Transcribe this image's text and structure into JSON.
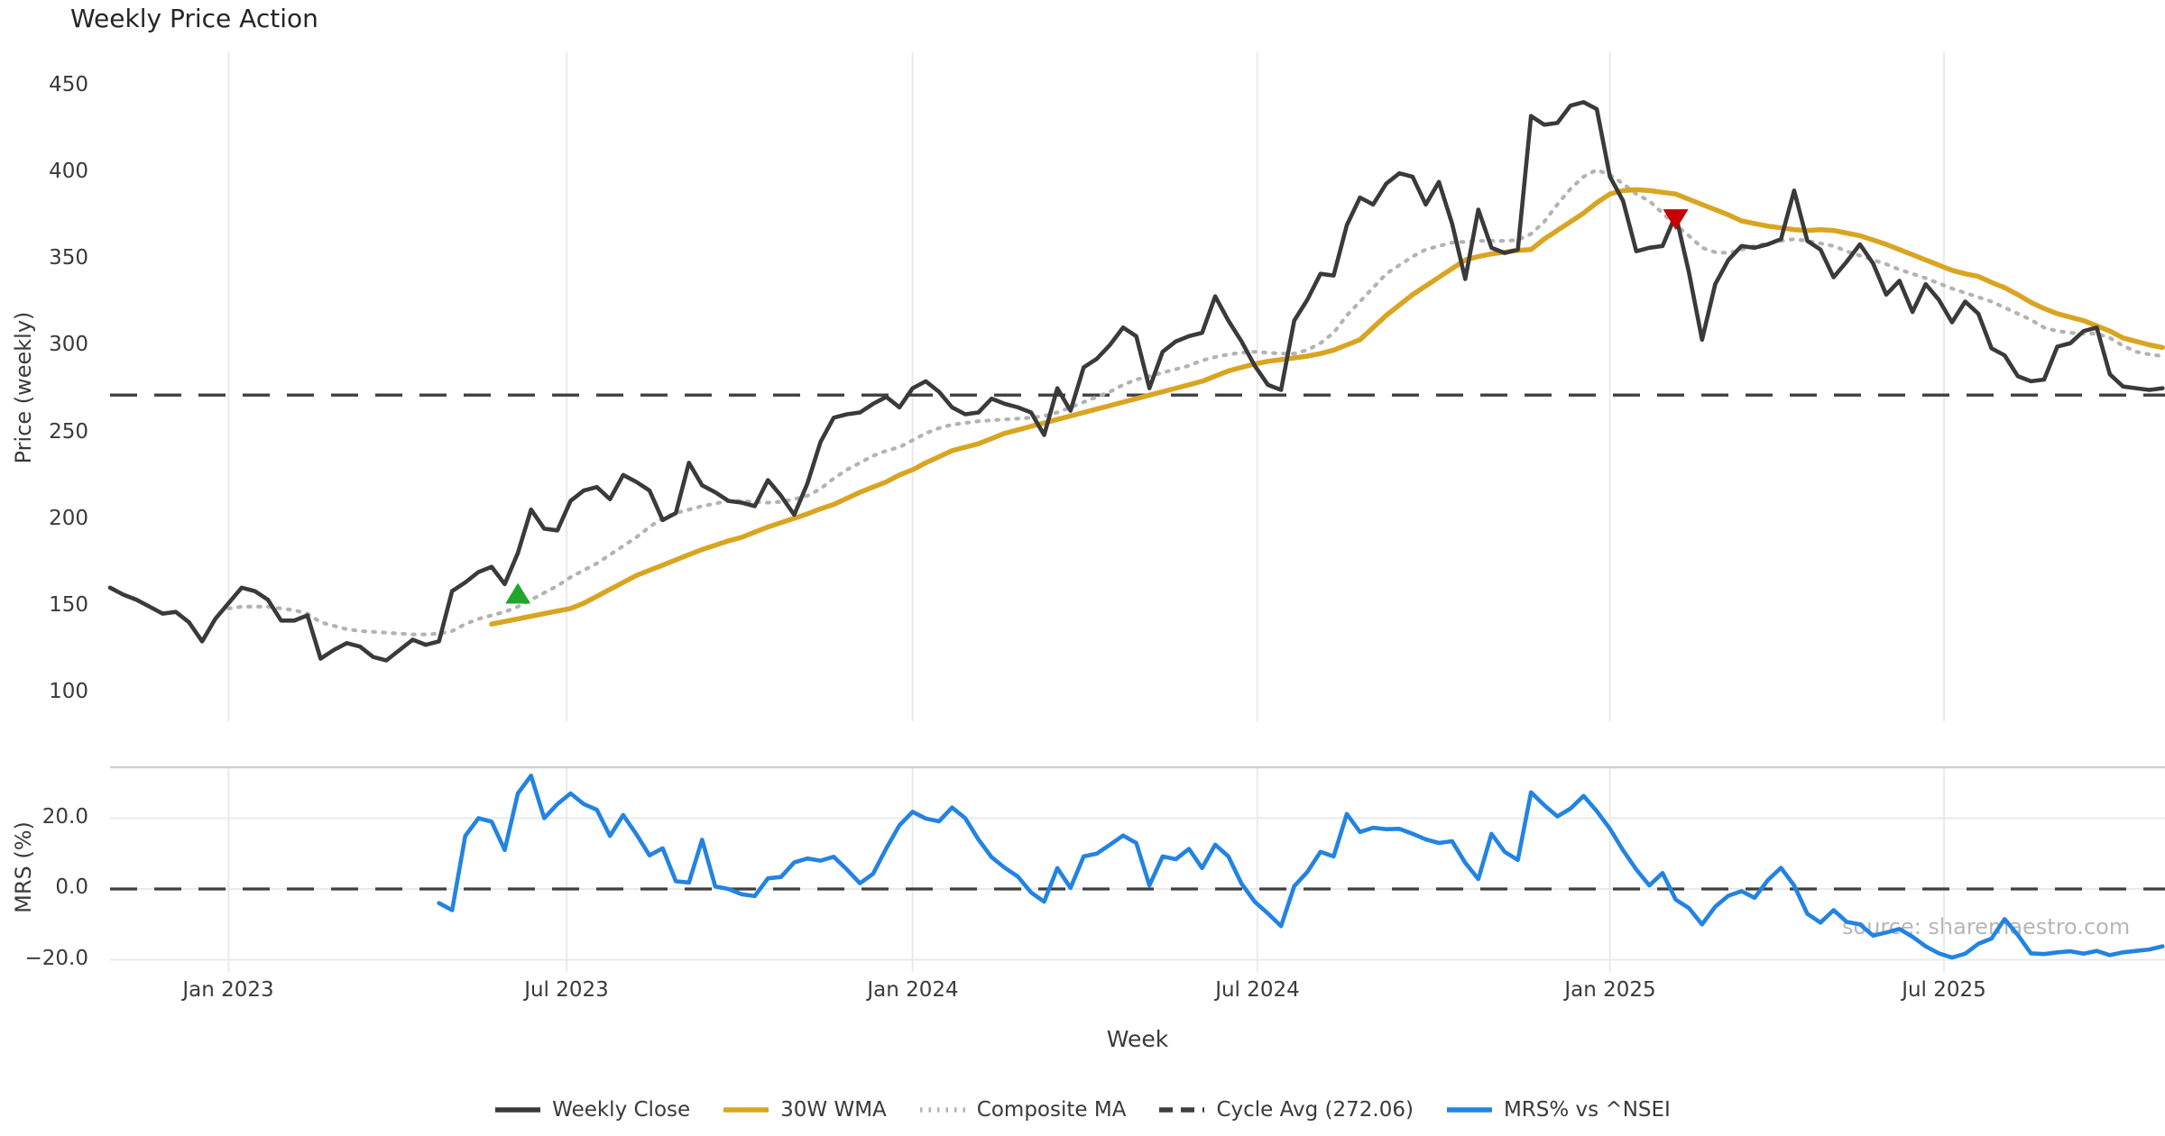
{
  "title": "Weekly Price Action",
  "watermark": "source: sharemaestro.com",
  "xlabel": "Week",
  "colors": {
    "weekly_close": "#3a3a3a",
    "wma_30w": "#d9a521",
    "composite_ma": "#b3b3b3",
    "cycle_avg": "#3f3f3f",
    "mrs": "#2383e2",
    "buy_marker": "#21a62c",
    "sell_marker": "#c40000",
    "grid": "#eaeaea",
    "panel_border": "#cfcfcf"
  },
  "legend": [
    {
      "label": "Weekly Close",
      "style": "solid",
      "color": "#3a3a3a"
    },
    {
      "label": "30W WMA",
      "style": "solid",
      "color": "#d9a521"
    },
    {
      "label": "Composite MA",
      "style": "dotted",
      "color": "#b3b3b3"
    },
    {
      "label": "Cycle Avg (272.06)",
      "style": "dashed",
      "color": "#3f3f3f"
    },
    {
      "label": "MRS% vs ^NSEI",
      "style": "solid",
      "color": "#2383e2"
    }
  ],
  "chart_data": [
    {
      "type": "line",
      "panel": "price",
      "ylabel": "Price (weekly)",
      "ylim": [
        88,
        470
      ],
      "yticks": [
        100,
        150,
        200,
        250,
        300,
        350,
        400,
        450
      ],
      "xticks": [
        {
          "label": "Jan 2023",
          "week_index": 9.0
        },
        {
          "label": "Jul 2023",
          "week_index": 34.7
        },
        {
          "label": "Jan 2024",
          "week_index": 61.0
        },
        {
          "label": "Jul 2024",
          "week_index": 87.2
        },
        {
          "label": "Jan 2025",
          "week_index": 114.0
        },
        {
          "label": "Jul 2025",
          "week_index": 139.4
        }
      ],
      "x_is_weeks_from": "late Oct 2022",
      "cycle_avg_value": 272.06,
      "series": [
        {
          "name": "Weekly Close",
          "style": "solid",
          "color": "#3a3a3a",
          "start_index": 0,
          "values": [
            161,
            157,
            154,
            150,
            146,
            147,
            141,
            130,
            143,
            152,
            161,
            159,
            154,
            142,
            142,
            145,
            120,
            125,
            129,
            127,
            121,
            119,
            125,
            131,
            128,
            130,
            159,
            164,
            170,
            173,
            163,
            181,
            206,
            195,
            194,
            211,
            217,
            219,
            212,
            226,
            222,
            217,
            200,
            204,
            233,
            220,
            216,
            211,
            210,
            208,
            223,
            214,
            203,
            221,
            245,
            259,
            261,
            262,
            267,
            271,
            265,
            276,
            280,
            274,
            265,
            261,
            262,
            270,
            267,
            265,
            262,
            249,
            276,
            263,
            288,
            293,
            301,
            311,
            306,
            276,
            297,
            303,
            306,
            308,
            329,
            315,
            303,
            289,
            278,
            275,
            315,
            327,
            342,
            341,
            370,
            386,
            382,
            394,
            400,
            398,
            382,
            395,
            371,
            339,
            379,
            357,
            354,
            356,
            433,
            428,
            429,
            439,
            441,
            437,
            398,
            384,
            355,
            357,
            358,
            376,
            343,
            304,
            336,
            350,
            358,
            357,
            359,
            362,
            390,
            361,
            356,
            340,
            349,
            359,
            348,
            330,
            338,
            320,
            336,
            327,
            314,
            326,
            319,
            299,
            295,
            283,
            280,
            281,
            300,
            302,
            309,
            311,
            284,
            277,
            276,
            275,
            276
          ]
        },
        {
          "name": "30W WMA",
          "style": "solid",
          "color": "#d9a521",
          "start_index": 29,
          "values": [
            140,
            141.5,
            143,
            144.5,
            146,
            147.5,
            149,
            152,
            156,
            160,
            164,
            168,
            171,
            174,
            177,
            180,
            183,
            185.5,
            188,
            190,
            193,
            196,
            198.5,
            201,
            203.5,
            206.5,
            209,
            212.5,
            216,
            219,
            222,
            226,
            229,
            233,
            236.5,
            240,
            242,
            244,
            247,
            250,
            252,
            254,
            256,
            258,
            260,
            262,
            264,
            266,
            268,
            270,
            272,
            274,
            276,
            278,
            280,
            283,
            286,
            288,
            290,
            291.5,
            292.5,
            293.5,
            294.5,
            296,
            298,
            301,
            304,
            311,
            318,
            324,
            330,
            335,
            340,
            345,
            350,
            352,
            353.5,
            354.5,
            355.5,
            356,
            362,
            367,
            372,
            377,
            383,
            388,
            390,
            390.5,
            390,
            389,
            388,
            385,
            382,
            379,
            376,
            372.5,
            371,
            369.5,
            368.5,
            367.5,
            367,
            367.5,
            367,
            365.5,
            364,
            361.5,
            359,
            356,
            353,
            350,
            347,
            344,
            342,
            340.5,
            337,
            334,
            330,
            325.5,
            322,
            319,
            317,
            315,
            312,
            309,
            305,
            303,
            301,
            299.5
          ]
        },
        {
          "name": "Composite MA",
          "style": "dotted",
          "color": "#b3b3b3",
          "start_index": 9,
          "values": [
            149,
            150,
            150,
            150,
            149,
            148,
            146,
            141,
            139,
            137,
            136,
            135.5,
            135,
            134.5,
            134,
            134,
            134.5,
            136,
            140,
            143,
            145,
            147,
            150,
            154,
            158,
            162,
            167,
            171,
            175,
            180,
            185,
            190,
            196,
            201,
            204,
            206,
            208,
            209.5,
            211,
            211,
            210.5,
            210,
            210.5,
            212,
            214,
            218,
            224,
            229,
            233,
            237,
            240,
            242,
            246,
            250,
            253,
            255,
            256,
            257,
            257.5,
            258,
            258.5,
            259,
            260,
            262,
            265,
            268,
            271,
            274,
            278,
            281,
            283,
            285,
            287,
            289,
            292,
            294,
            295.5,
            296.5,
            297,
            296.5,
            296,
            296,
            298,
            302,
            308,
            318,
            326,
            334,
            342,
            347,
            352,
            356,
            358,
            360,
            360.5,
            361,
            361,
            361,
            361.5,
            365,
            372,
            382,
            391,
            398,
            402,
            399,
            394,
            388,
            384,
            377,
            370,
            364,
            357,
            354.5,
            354,
            356,
            358,
            359.5,
            361,
            362,
            361,
            359.5,
            358,
            355,
            352.5,
            350,
            347.5,
            344.5,
            342,
            339.5,
            336.5,
            333.5,
            331,
            328.5,
            326,
            322.5,
            319,
            315.5,
            311,
            309,
            308,
            307.5,
            307.5,
            305,
            300.5,
            297,
            295.5,
            294.5
          ]
        }
      ],
      "markers": [
        {
          "type": "buy",
          "shape": "triangle-up",
          "color": "#21a62c",
          "week_index": 31,
          "value": 157
        },
        {
          "type": "sell",
          "shape": "triangle-down",
          "color": "#c40000",
          "week_index": 119,
          "value": 374
        }
      ]
    },
    {
      "type": "line",
      "panel": "mrs",
      "ylabel": "MRS (%)",
      "ylim": [
        -23.5,
        34.5
      ],
      "yticks": [
        {
          "label": "20.0",
          "value": 20
        },
        {
          "label": "0.0",
          "value": 0
        },
        {
          "label": "−20.0",
          "value": -20
        }
      ],
      "zero_line": 0,
      "series": [
        {
          "name": "MRS% vs ^NSEI",
          "style": "solid",
          "color": "#2383e2",
          "start_index": 25,
          "values": [
            -4,
            -6,
            15,
            20,
            19,
            11,
            27,
            32,
            20,
            24,
            27,
            24,
            22.4,
            15,
            20.9,
            15.5,
            9.5,
            11.5,
            2.2,
            1.8,
            13.9,
            0.7,
            0,
            -1.5,
            -2,
            3,
            3.4,
            7.5,
            8.6,
            8,
            9.1,
            5.5,
            1.6,
            4.3,
            11.5,
            18,
            21.8,
            19.9,
            19.1,
            23,
            20,
            14,
            9,
            6,
            3.5,
            -1,
            -3.6,
            5.9,
            0.3,
            9.2,
            10,
            12.5,
            15.1,
            13,
            1,
            9.2,
            8.4,
            11.3,
            5.9,
            12.5,
            9.2,
            1.5,
            -3.6,
            -6.9,
            -10.5,
            0.8,
            4.8,
            10.5,
            9.2,
            21.2,
            16.1,
            17.3,
            16.9,
            17,
            15.6,
            14,
            13,
            13.5,
            7.4,
            2.8,
            15.6,
            10.5,
            8.2,
            27.3,
            23.7,
            20.5,
            22.7,
            26.3,
            22,
            17,
            10.9,
            5.5,
            1,
            4.5,
            -3,
            -5.4,
            -10,
            -5,
            -1.9,
            -0.6,
            -2.5,
            2.5,
            6,
            1,
            -7,
            -9.5,
            -6,
            -9.3,
            -10,
            -13.2,
            -12.3,
            -11.3,
            -13.5,
            -16.2,
            -18.2,
            -19.4,
            -18.3,
            -15.5,
            -14,
            -8.5,
            -13,
            -18.2,
            -18.4,
            -17.9,
            -17.6,
            -18.3,
            -17.5,
            -18.7,
            -17.9,
            -17.5,
            -17.1,
            -16.2
          ]
        }
      ]
    }
  ]
}
